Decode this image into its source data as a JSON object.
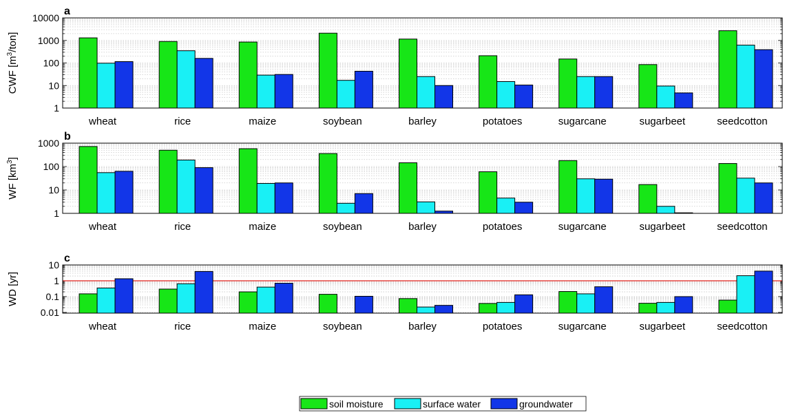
{
  "chart_data": [
    {
      "type": "bar",
      "panel_label": "a",
      "ylabel": "CWF [m3/ton]",
      "ylabel_parts": {
        "base": "CWF [m",
        "sup": "3",
        "tail": "/ton]"
      },
      "yscale": "log",
      "ylim": [
        1,
        10000
      ],
      "yticks": [
        1,
        10,
        100,
        1000,
        10000
      ],
      "ytick_labels": [
        "1",
        "10",
        "100",
        "1000",
        "10000"
      ],
      "grid": "minor, dotted",
      "categories": [
        "wheat",
        "rice",
        "maize",
        "soybean",
        "barley",
        "potatoes",
        "sugarcane",
        "sugarbeet",
        "seedcotton"
      ],
      "series": [
        {
          "name": "soil moisture",
          "values": [
            1300,
            900,
            850,
            2100,
            1150,
            210,
            150,
            85,
            2700
          ]
        },
        {
          "name": "surface water",
          "values": [
            98,
            350,
            29,
            17,
            25,
            15,
            25,
            9.5,
            620
          ]
        },
        {
          "name": "groundwater",
          "values": [
            115,
            160,
            31,
            43,
            10,
            10.5,
            25,
            4.7,
            390
          ]
        }
      ]
    },
    {
      "type": "bar",
      "panel_label": "b",
      "ylabel": "WF [km3]",
      "ylabel_parts": {
        "base": "WF [km",
        "sup": "3",
        "tail": "]"
      },
      "yscale": "log",
      "ylim": [
        1,
        1000
      ],
      "yticks": [
        1,
        10,
        100,
        1000
      ],
      "ytick_labels": [
        "1",
        "10",
        "100",
        "1000"
      ],
      "grid": "minor, dotted",
      "categories": [
        "wheat",
        "rice",
        "maize",
        "soybean",
        "barley",
        "potatoes",
        "sugarcane",
        "sugarbeet",
        "seedcotton"
      ],
      "series": [
        {
          "name": "soil moisture",
          "values": [
            720,
            500,
            580,
            360,
            145,
            60,
            180,
            17,
            135
          ]
        },
        {
          "name": "surface water",
          "values": [
            55,
            190,
            19,
            2.7,
            3.1,
            4.5,
            30,
            2.0,
            32
          ]
        },
        {
          "name": "groundwater",
          "values": [
            63,
            90,
            20,
            7,
            1.25,
            3.0,
            29,
            0.98,
            20
          ]
        }
      ]
    },
    {
      "type": "bar",
      "panel_label": "c",
      "ylabel": "WD [yr]",
      "ylabel_parts": {
        "base": "WD [yr]",
        "sup": "",
        "tail": ""
      },
      "yscale": "log",
      "ylim": [
        0.009,
        10
      ],
      "yticks": [
        0.01,
        0.1,
        1,
        10
      ],
      "ytick_labels": [
        "0.01",
        "0.1",
        "1",
        "10"
      ],
      "grid": "minor, dotted",
      "reference_line": {
        "value": 1,
        "color": "#e0201a"
      },
      "categories": [
        "wheat",
        "rice",
        "maize",
        "soybean",
        "barley",
        "potatoes",
        "sugarcane",
        "sugarbeet",
        "seedcotton"
      ],
      "series": [
        {
          "name": "soil moisture",
          "values": [
            0.15,
            0.3,
            0.2,
            0.14,
            0.075,
            0.037,
            0.21,
            0.038,
            0.06
          ]
        },
        {
          "name": "surface water",
          "values": [
            0.35,
            0.65,
            0.4,
            null,
            0.022,
            0.043,
            0.15,
            0.043,
            2.1
          ]
        },
        {
          "name": "groundwater",
          "values": [
            1.35,
            3.9,
            0.7,
            0.105,
            0.028,
            0.13,
            0.42,
            0.1,
            4.1
          ]
        }
      ]
    }
  ],
  "legend": {
    "placement": "bottom-center",
    "items": [
      {
        "label": "soil moisture",
        "color": "#17e617"
      },
      {
        "label": "surface water",
        "color": "#19f0f5"
      },
      {
        "label": "groundwater",
        "color": "#1236e8"
      }
    ]
  },
  "colors": {
    "soil_moisture": "#17e617",
    "surface_water": "#19f0f5",
    "groundwater": "#1236e8",
    "reference_line": "#e0201a",
    "grid": "#c8c8c8"
  }
}
